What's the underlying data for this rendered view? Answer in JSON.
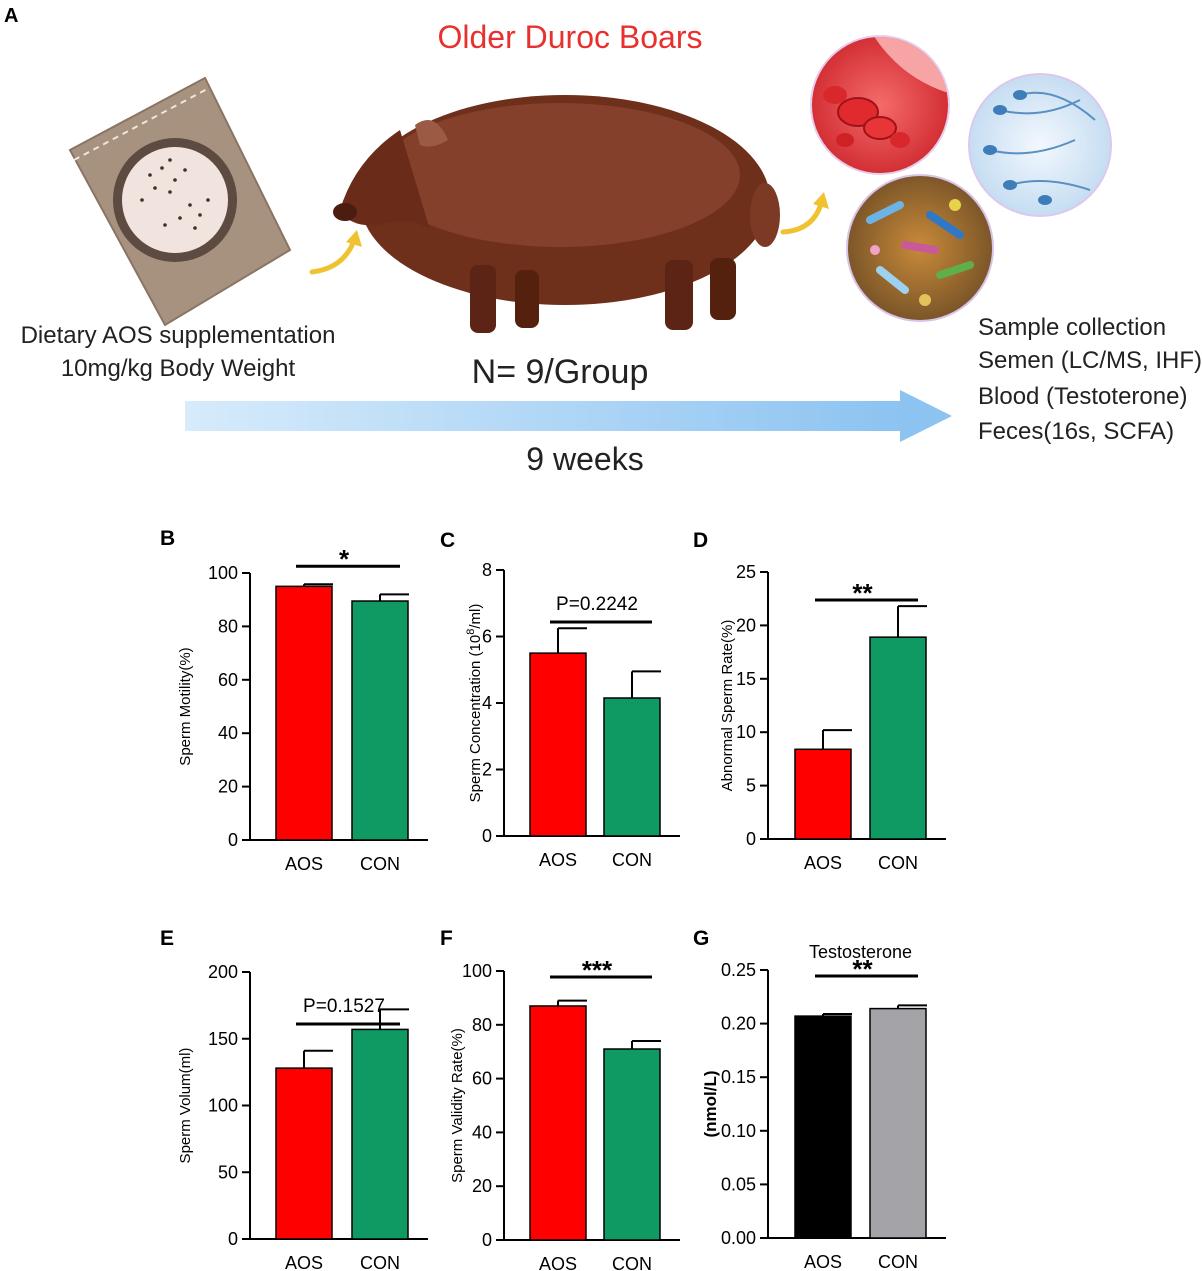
{
  "panel_a": {
    "label": "A",
    "title": "Older Duroc Boars",
    "diet_line1": "Dietary AOS supplementation",
    "diet_line2": "10mg/kg Body Weight",
    "n_label": "N= 9/Group",
    "duration": "9 weeks",
    "sample_title": "Sample collection",
    "sample_items": [
      "Semen (LC/MS, IHF)",
      "Blood (Testoterone)",
      "Feces(16s, SCFA)"
    ],
    "colors": {
      "title": "#e8312f",
      "arrow": "#a9d3f5",
      "curve_arrow": "#f0c232"
    },
    "icons": [
      "feed-bag-icon",
      "boar-image",
      "blood-cells-image",
      "sperm-image",
      "microbiota-image"
    ]
  },
  "chart_data": [
    {
      "panel": "B",
      "type": "bar",
      "categories": [
        "AOS",
        "CON"
      ],
      "values": [
        95,
        89.5
      ],
      "errors": [
        0.8,
        2.5
      ],
      "ylabel": "Sperm Motility(%)",
      "ylim": [
        0,
        100
      ],
      "yticks": [
        "0",
        "20",
        "40",
        "60",
        "80",
        "100"
      ],
      "significance": "*",
      "colors": [
        "#ff0000",
        "#0f9a63"
      ]
    },
    {
      "panel": "C",
      "type": "bar",
      "categories": [
        "AOS",
        "CON"
      ],
      "values": [
        5.5,
        4.15
      ],
      "errors": [
        0.75,
        0.8
      ],
      "ylabel_main": "Sperm Concentration (10",
      "ylabel_sup": "8",
      "ylabel_tail": "/ml)",
      "ylim": [
        0,
        8
      ],
      "yticks": [
        "0",
        "2",
        "4",
        "6",
        "8"
      ],
      "significance": "P=0.2242",
      "colors": [
        "#ff0000",
        "#0f9a63"
      ]
    },
    {
      "panel": "D",
      "type": "bar",
      "categories": [
        "AOS",
        "CON"
      ],
      "values": [
        8.4,
        18.9
      ],
      "errors": [
        1.8,
        2.9
      ],
      "ylabel": "Abnormal Sperm Rate(%)",
      "ylim": [
        0,
        25
      ],
      "yticks": [
        "0",
        "5",
        "10",
        "15",
        "20",
        "25"
      ],
      "significance": "**",
      "colors": [
        "#ff0000",
        "#0f9a63"
      ]
    },
    {
      "panel": "E",
      "type": "bar",
      "categories": [
        "AOS",
        "CON"
      ],
      "values": [
        128,
        157
      ],
      "errors": [
        13,
        15
      ],
      "ylabel": "Sperm Volum(ml)",
      "ylim": [
        0,
        200
      ],
      "yticks": [
        "0",
        "50",
        "100",
        "150",
        "200"
      ],
      "significance": "P=0.1527",
      "colors": [
        "#ff0000",
        "#0f9a63"
      ]
    },
    {
      "panel": "F",
      "type": "bar",
      "categories": [
        "AOS",
        "CON"
      ],
      "values": [
        87,
        71
      ],
      "errors": [
        2,
        3
      ],
      "ylabel": "Sperm Validity Rate(%)",
      "ylim": [
        0,
        100
      ],
      "yticks": [
        "0",
        "20",
        "40",
        "60",
        "80",
        "100"
      ],
      "significance": "***",
      "colors": [
        "#ff0000",
        "#0f9a63"
      ]
    },
    {
      "panel": "G",
      "type": "bar",
      "categories": [
        "AOS",
        "CON"
      ],
      "values": [
        0.207,
        0.214
      ],
      "errors": [
        0.002,
        0.003
      ],
      "title": "Testosterone",
      "ylabel": "(nmol/L)",
      "ylim": [
        0,
        0.25
      ],
      "yticks": [
        "0.00",
        "0.05",
        "0.10",
        "0.15",
        "0.20",
        "0.25"
      ],
      "significance": "**",
      "colors": [
        "#000000",
        "#a3a3a8"
      ]
    }
  ]
}
